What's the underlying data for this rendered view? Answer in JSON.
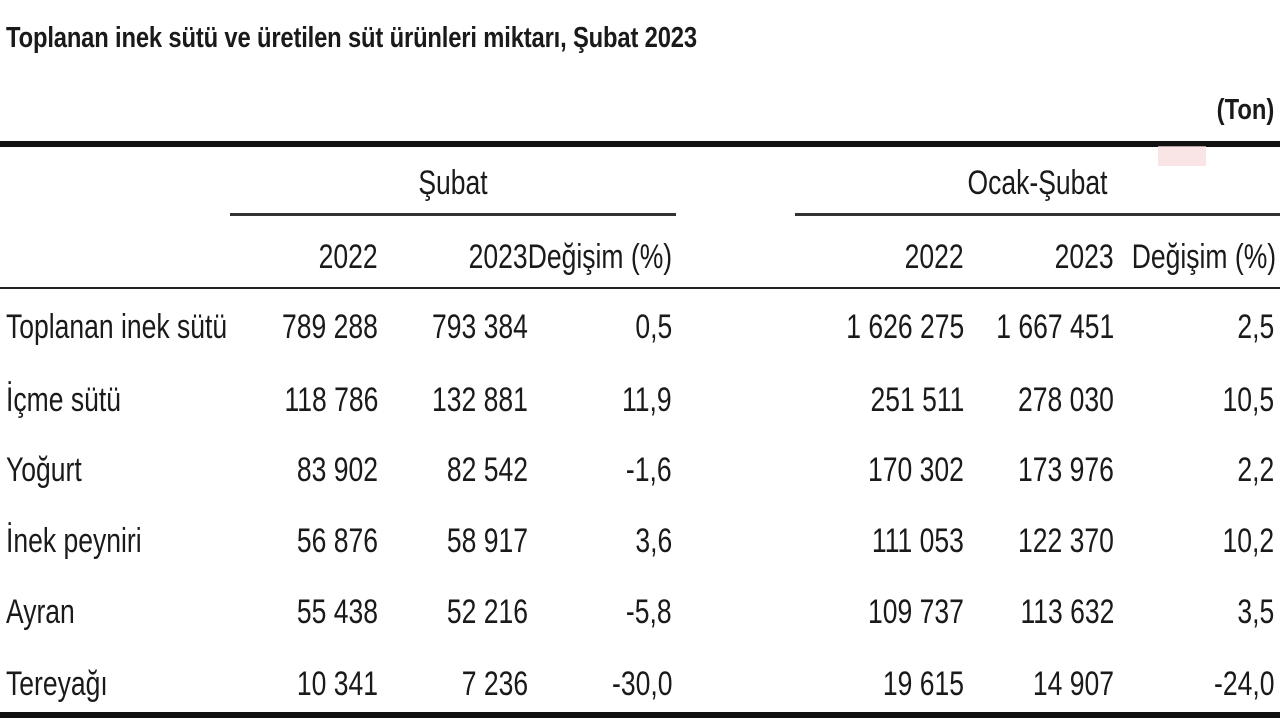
{
  "title": "Toplanan inek sütü ve üretilen süt ürünleri miktarı, Şubat 2023",
  "unit": "(Ton)",
  "groups": {
    "subat": "Şubat",
    "ocak_subat": "Ocak-Şubat"
  },
  "headers": {
    "y2022": "2022",
    "y2023": "2023",
    "change": "Değişim (%)"
  },
  "rows": [
    {
      "label": "Toplanan inek sütü",
      "s2022": "789 288",
      "s2023": "793 384",
      "schg": "0,5",
      "o2022": "1 626 275",
      "o2023": "1 667 451",
      "ochg": "2,5"
    },
    {
      "label": "İçme sütü",
      "s2022": "118 786",
      "s2023": "132 881",
      "schg": "11,9",
      "o2022": "251 511",
      "o2023": "278 030",
      "ochg": "10,5"
    },
    {
      "label": "Yoğurt",
      "s2022": "83 902",
      "s2023": "82 542",
      "schg": "-1,6",
      "o2022": "170 302",
      "o2023": "173 976",
      "ochg": "2,2"
    },
    {
      "label": "İnek peyniri",
      "s2022": "56 876",
      "s2023": "58 917",
      "schg": "3,6",
      "o2022": "111 053",
      "o2023": "122 370",
      "ochg": "10,2"
    },
    {
      "label": "Ayran",
      "s2022": "55 438",
      "s2023": "52 216",
      "schg": "-5,8",
      "o2022": "109 737",
      "o2023": "113 632",
      "ochg": "3,5"
    },
    {
      "label": "Tereyağı",
      "s2022": "10 341",
      "s2023": "7 236",
      "schg": "-30,0",
      "o2022": "19 615",
      "o2023": "14 907",
      "ochg": "-24,0"
    }
  ]
}
